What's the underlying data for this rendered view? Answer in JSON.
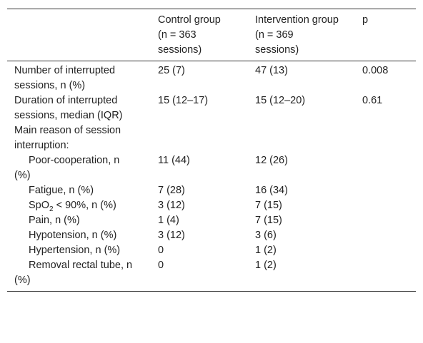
{
  "table": {
    "header": [
      [],
      [
        "Control group",
        "(n = 363",
        "sessions)"
      ],
      [
        "Intervention group",
        "(n = 369",
        "sessions)"
      ],
      [
        "p"
      ]
    ],
    "rows": [
      {
        "cells": [
          "Number of interrupted sessions, n (%)",
          "25 (7)",
          "47 (13)",
          "0.008"
        ]
      },
      {
        "cells": [
          "Duration of interrupted sessions, median (IQR)",
          "15 (12–17)",
          "15 (12–20)",
          "0.61"
        ]
      },
      {
        "cells": [
          "Main reason of session interruption:"
        ]
      },
      {
        "cells": [
          "Poor-cooperation, n (%)",
          "11 (44)",
          "12 (26)"
        ],
        "indent": true
      },
      {
        "cells": [
          "Fatigue, n (%)",
          "7 (28)",
          "16 (34)"
        ],
        "indent": true
      },
      {
        "cells": [
          [
            "SpO",
            "2",
            " < 90%, n (%)"
          ],
          "3 (12)",
          "7 (15)"
        ],
        "indent": true
      },
      {
        "cells": [
          "Pain, n (%)",
          "1 (4)",
          "7 (15)"
        ],
        "indent": true
      },
      {
        "cells": [
          "Hypotension, n (%)",
          "3 (12)",
          "3 (6)"
        ],
        "indent": true
      },
      {
        "cells": [
          "Hypertension, n (%)",
          "0",
          "1 (2)"
        ],
        "indent": true
      },
      {
        "cells": [
          "Removal rectal tube, n (%)",
          "0",
          "1 (2)"
        ],
        "indent": true
      }
    ]
  }
}
